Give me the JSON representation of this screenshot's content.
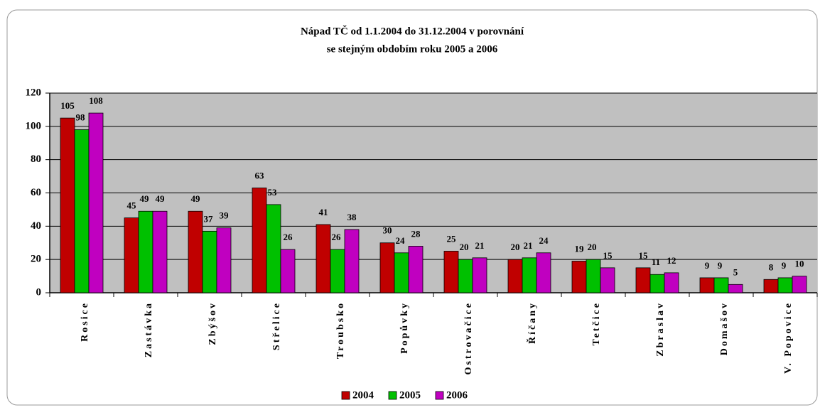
{
  "chart_data": {
    "type": "bar",
    "title": [
      "Nápad TČ od 1.1.2004 do 31.12.2004 v porovnání",
      "se stejným obdobím roku 2005 a 2006"
    ],
    "categories": [
      "Rosice",
      "Zastávka",
      "Zbýšov",
      "Střelice",
      "Troubsko",
      "Popůvky",
      "Ostrovačice",
      "Říčany",
      "Tetčice",
      "Zbraslav",
      "Domašov",
      "V. Popovice"
    ],
    "series": [
      {
        "name": "2004",
        "color": "#c00000",
        "values": [
          105,
          45,
          49,
          63,
          41,
          30,
          25,
          20,
          19,
          15,
          9,
          8
        ]
      },
      {
        "name": "2005",
        "color": "#00c000",
        "values": [
          98,
          49,
          37,
          53,
          26,
          24,
          20,
          21,
          20,
          11,
          9,
          9
        ]
      },
      {
        "name": "2006",
        "color": "#c000c0",
        "values": [
          108,
          49,
          39,
          26,
          38,
          28,
          21,
          24,
          15,
          12,
          5,
          10
        ]
      }
    ],
    "ylim": [
      0,
      120
    ],
    "yticks": [
      0,
      20,
      40,
      60,
      80,
      100,
      120
    ],
    "grid": true,
    "legend": "bottom"
  }
}
